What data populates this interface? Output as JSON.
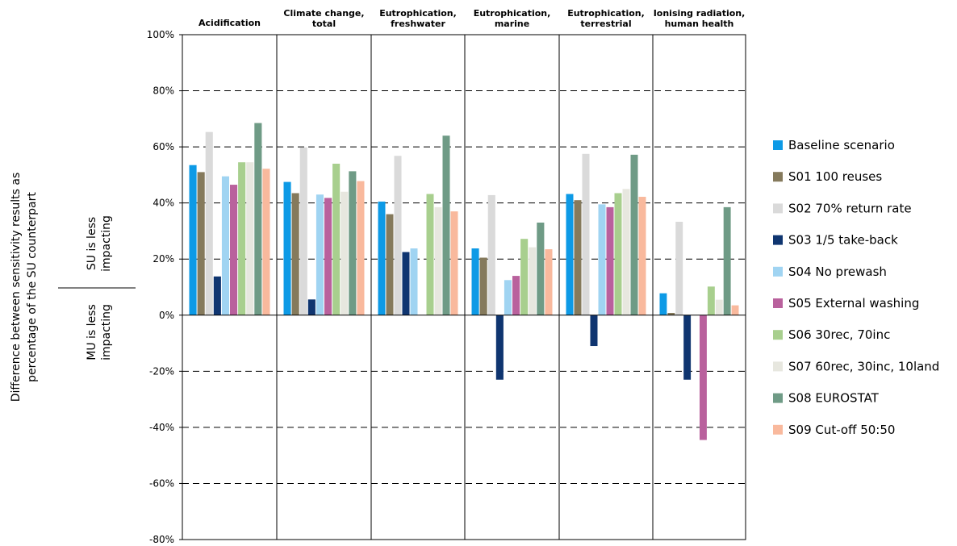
{
  "chart_data": {
    "type": "bar",
    "ylabel": "Difference between sensitivity results as percentage of the SU counterpart",
    "ylabel_lines": [
      "Difference between sensitivity results as",
      "percentage of the SU counterpart"
    ],
    "annotations": {
      "upper": [
        "SU is less",
        "impacting"
      ],
      "lower": [
        "MU is less",
        "impacting"
      ]
    },
    "ylim": [
      -80,
      100
    ],
    "yticks": [
      -80,
      -60,
      -40,
      -20,
      0,
      20,
      40,
      60,
      80,
      100
    ],
    "ytick_labels": [
      "-80%",
      "-60%",
      "-40%",
      "-20%",
      "0%",
      "20%",
      "40%",
      "60%",
      "80%",
      "100%"
    ],
    "grid": "dashed horizontal at ±20% steps",
    "legend_position": "right",
    "panels": [
      {
        "title": [
          "Acidification"
        ]
      },
      {
        "title": [
          "Climate change,",
          "total"
        ]
      },
      {
        "title": [
          "Eutrophication,",
          "freshwater"
        ]
      },
      {
        "title": [
          "Eutrophication,",
          "marine"
        ]
      },
      {
        "title": [
          "Eutrophication,",
          "terrestrial"
        ]
      },
      {
        "title": [
          "Ionising radiation,",
          "human health"
        ]
      }
    ],
    "series": [
      {
        "name": "Baseline scenario",
        "color": "#0d9ae6",
        "values": [
          53.5,
          47.5,
          40.5,
          23.8,
          43.2,
          7.8
        ]
      },
      {
        "name": "S01 100 reuses",
        "color": "#857a5c",
        "values": [
          51.0,
          43.5,
          36.0,
          20.5,
          41.0,
          0.8
        ]
      },
      {
        "name": "S02 70% return rate",
        "color": "#dadada",
        "values": [
          65.3,
          59.8,
          56.8,
          42.8,
          57.5,
          33.3
        ]
      },
      {
        "name": "S03 1/5 take-back",
        "color": "#0f3570",
        "values": [
          13.8,
          5.6,
          22.5,
          -23.0,
          -11.0,
          -23.0
        ]
      },
      {
        "name": "S04 No prewash",
        "color": "#a0d4f2",
        "values": [
          49.5,
          43.0,
          23.8,
          12.5,
          39.5,
          0
        ]
      },
      {
        "name": "S05 External washing",
        "color": "#b9619d",
        "values": [
          46.5,
          41.8,
          0,
          14.0,
          38.5,
          -44.5
        ]
      },
      {
        "name": "S06 30rec, 70inc",
        "color": "#a8cf8e",
        "values": [
          54.5,
          54.0,
          43.2,
          27.2,
          43.5,
          10.2
        ]
      },
      {
        "name": "S07 60rec, 30inc, 10land",
        "color": "#e7e7df",
        "values": [
          54.5,
          44.0,
          38.5,
          24.2,
          45.0,
          5.5
        ]
      },
      {
        "name": "S08 EUROSTAT",
        "color": "#6f9b86",
        "values": [
          68.5,
          51.3,
          64.0,
          33.0,
          57.2,
          38.5
        ]
      },
      {
        "name": "S09 Cut-off 50:50",
        "color": "#f9b99d",
        "values": [
          52.2,
          47.8,
          37.0,
          23.5,
          42.2,
          3.5
        ]
      }
    ]
  }
}
